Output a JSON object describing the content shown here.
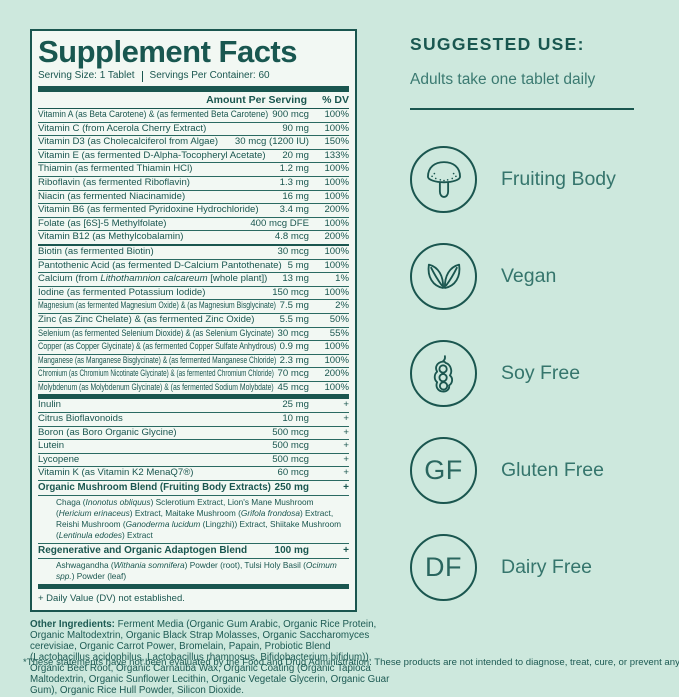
{
  "colors": {
    "background": "#cde8dd",
    "panel_background": "#f2f8f3",
    "teal_dark": "#1a564f",
    "teal_mid": "#35756c"
  },
  "panel": {
    "title": "Supplement Facts",
    "serving_size": "Serving Size: 1 Tablet",
    "servings_per_container": "Servings Per Container: 60",
    "columns": {
      "amount": "Amount Per Serving",
      "dv": "% DV"
    },
    "rows": [
      {
        "name": "Vitamin A (as Beta Carotene) & (as fermented Beta Carotene)",
        "amount": "900 mcg",
        "dv": "100%"
      },
      {
        "name": "Vitamin C (from Acerola Cherry Extract)",
        "amount": "90 mg",
        "dv": "100%"
      },
      {
        "name": "Vitamin D3 (as Cholecalciferol from Algae)",
        "amount": "30 mcg (1200 IU)",
        "dv": "150%"
      },
      {
        "name": "Vitamin E (as fermented D-Alpha-Tocopheryl Acetate)",
        "amount": "20 mg",
        "dv": "133%"
      },
      {
        "name": "Thiamin (as fermented Thiamin HCl)",
        "amount": "1.2 mg",
        "dv": "100%"
      },
      {
        "name": "Riboflavin (as fermented Riboflavin)",
        "amount": "1.3 mg",
        "dv": "100%"
      },
      {
        "name": "Niacin (as fermented Niacinamide)",
        "amount": "16 mg",
        "dv": "100%"
      },
      {
        "name": "Vitamin B6 (as fermented Pyridoxine Hydrochloride)",
        "amount": "3.4 mg",
        "dv": "200%"
      },
      {
        "name": "Folate (as [6S]-5 Methylfolate)",
        "amount": "400 mcg DFE",
        "dv": "100%"
      },
      {
        "name": "Vitamin B12 (as Methylcobalamin)",
        "amount": "4.8 mcg",
        "dv": "200%",
        "sep": "medium"
      },
      {
        "name": "Biotin (as fermented Biotin)",
        "amount": "30 mcg",
        "dv": "100%"
      },
      {
        "name": "Pantothenic Acid (as fermented D-Calcium Pantothenate)",
        "amount": "5 mg",
        "dv": "100%"
      },
      {
        "name": "Calcium (from *Lithothamnion calcareum* [whole plant])",
        "amount": "13 mg",
        "dv": "1%"
      },
      {
        "name": "Iodine (as fermented Potassium Iodide)",
        "amount": "150 mcg",
        "dv": "100%"
      },
      {
        "name": "Magnesium (as fermented Magnesium Oxide) & (as Magnesium Bisglycinate)",
        "amount": "7.5 mg",
        "dv": "2%"
      },
      {
        "name": "Zinc (as Zinc Chelate) & (as fermented Zinc Oxide)",
        "amount": "5.5 mg",
        "dv": "50%"
      },
      {
        "name": "Selenium (as fermented Selenium Dioxide) & (as Selenium Glycinate)",
        "amount": "30 mcg",
        "dv": "55%"
      },
      {
        "name": "Copper (as Copper Glycinate) & (as fermented Copper Sulfate Anhydrous)",
        "amount": "0.9 mg",
        "dv": "100%"
      },
      {
        "name": "Manganese (as Manganese Bisglycinate) & (as fermented Manganese Chloride)",
        "amount": "2.3 mg",
        "dv": "100%"
      },
      {
        "name": "Chromium (as Chromium Nicotinate Glycinate) & (as fermented Chromium Chloride)",
        "amount": "70 mcg",
        "dv": "200%"
      },
      {
        "name": "Molybdenum (as Molybdenum Glycinate) & (as fermented Sodium Molybdate)",
        "amount": "45 mcg",
        "dv": "100%",
        "sep": "thick"
      },
      {
        "name": "Inulin",
        "amount": "25 mg",
        "dv": "+"
      },
      {
        "name": "Citrus Bioflavonoids",
        "amount": "10 mg",
        "dv": "+"
      },
      {
        "name": "Boron (as Boro Organic Glycine)",
        "amount": "500 mcg",
        "dv": "+"
      },
      {
        "name": "Lutein",
        "amount": "500 mcg",
        "dv": "+"
      },
      {
        "name": "Lycopene",
        "amount": "500 mcg",
        "dv": "+"
      },
      {
        "name": "Vitamin K (as Vitamin K2 MenaQ7®)",
        "amount": "60 mcg",
        "dv": "+"
      },
      {
        "name": "Organic Mushroom Blend (Fruiting Body Extracts)",
        "amount": "250 mg",
        "dv": "+",
        "bold": true
      },
      {
        "desc": "Chaga (*Inonotus obliquus*) Sclerotium Extract, Lion's Mane Mushroom (*Hericium erinaceus*) Extract, Maitake Mushroom (*Grifola frondosa*) Extract, Reishi Mushroom (*Ganoderma lucidum* (Lingzhi)) Extract, Shiitake Mushroom (*Lentinula edodes*) Extract"
      },
      {
        "name": "Regenerative and Organic Adaptogen Blend",
        "amount": "100 mg",
        "dv": "+",
        "bold": true
      },
      {
        "desc": "Ashwagandha (*Withania somnifera*) Powder (root), Tulsi Holy Basil (*Ocimum spp.*) Powder (leaf)",
        "sep": "thick"
      }
    ],
    "footnote": "+ Daily Value (DV) not established."
  },
  "other_ingredients": {
    "label": "Other Ingredients:",
    "text": " Ferment Media (Organic Gum Arabic, Organic Rice Protein, Organic Maltodextrin, Organic Black Strap Molasses, Organic Saccharomyces cerevisiae, Organic Carrot Power, Bromelain, Papain, Probiotic Blend (Lactobacillus acidophilus, Lactobacillus rhamnosus, Bifidobacterium bifidum)), Organic Beet Root, Organic Carnauba Wax, Organic Coating (Organic Tapioca Maltodextrin, Organic Sunflower Lecithin, Organic Vegetale Glycerin, Organic Guar Gum), Organic Rice Hull Powder, Silicon Dioxide."
  },
  "disclaimer": "*These statements have not been evaluated by the Food and Drug Administration. These products are not intended to diagnose, treat, cure, or prevent any disease.",
  "suggested_use": {
    "heading": "SUGGESTED USE:",
    "text": "Adults take one tablet daily"
  },
  "badges": [
    {
      "icon": "mushroom-icon",
      "label": "Fruiting Body"
    },
    {
      "icon": "leaves-icon",
      "label": "Vegan"
    },
    {
      "icon": "soybean-icon",
      "label": "Soy Free"
    },
    {
      "icon": "gf-monogram-icon",
      "label": "Gluten Free",
      "monogram": "GF"
    },
    {
      "icon": "df-monogram-icon",
      "label": "Dairy Free",
      "monogram": "DF"
    }
  ]
}
